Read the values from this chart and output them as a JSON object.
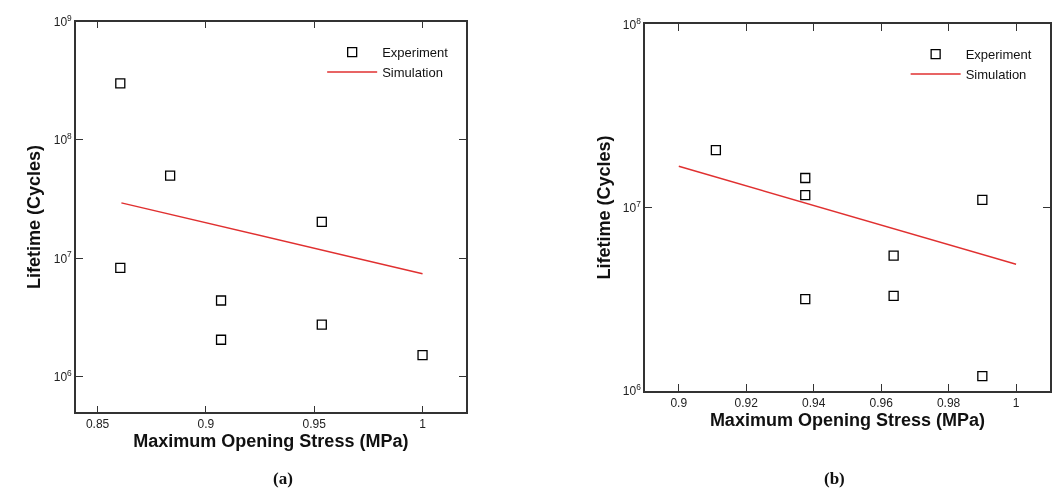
{
  "chart_data": [
    {
      "type": "scatter",
      "xlabel": "Maximum Opening Stress (MPa)",
      "ylabel": "Lifetime (Cycles)",
      "log": "y",
      "legend": "top right",
      "xlim": [
        0.84,
        1.02
      ],
      "xticks": [
        0.85,
        0.9,
        0.95,
        1
      ],
      "ylim": [
        500000,
        1000000000
      ],
      "yticks": [
        {
          "value": 1000000,
          "label": "10$^{6}$"
        },
        {
          "value": 10000000,
          "label": "10$^{7}$"
        },
        {
          "value": 100000000,
          "label": "10$^{8}$"
        },
        {
          "value": 1000000000,
          "label": "10$^{9}$"
        }
      ],
      "series": [
        {
          "name": "Experiment",
          "marker": "square",
          "color": "#000000",
          "x": [
            0.8605,
            0.8605,
            0.8835,
            0.907,
            0.907,
            0.9535,
            0.9535,
            1.0
          ],
          "values": [
            300000000,
            8300000,
            50000000,
            4400000,
            2050000,
            20300000,
            2750000,
            1520000
          ]
        },
        {
          "name": "Simulation",
          "type": "line",
          "marker": "none",
          "line_style": "solid",
          "color": "#e03030",
          "x": [
            0.861,
            1.0
          ],
          "values": [
            29400000,
            7400000
          ]
        }
      ],
      "annotations": [
        "(a)"
      ]
    },
    {
      "type": "scatter",
      "xlabel": "Maximum Opening Stress (MPa)",
      "ylabel": "Lifetime (Cycles)",
      "log": "y",
      "legend": "top right",
      "xlim": [
        0.89,
        1.01
      ],
      "xticks": [
        0.9,
        0.92,
        0.94,
        0.96,
        0.98,
        1
      ],
      "ylim": [
        1000000,
        100000000
      ],
      "yticks": [
        {
          "value": 1000000,
          "label": "10$^{6}$"
        },
        {
          "value": 10000000,
          "label": "10$^{7}$"
        },
        {
          "value": 100000000,
          "label": "10$^{8}$"
        }
      ],
      "series": [
        {
          "name": "Experiment",
          "marker": "square",
          "color": "#000000",
          "x": [
            0.911,
            0.9375,
            0.9375,
            0.9375,
            0.9637,
            0.9637,
            0.99,
            0.99
          ],
          "values": [
            20600000,
            14500000,
            11700000,
            3160000,
            5460000,
            3290000,
            11000000,
            1200000
          ]
        },
        {
          "name": "Simulation",
          "type": "line",
          "marker": "none",
          "line_style": "solid",
          "color": "#e03030",
          "x": [
            0.9,
            1.0
          ],
          "values": [
            16800000,
            4900000
          ]
        }
      ],
      "annotations": [
        "(b)"
      ]
    }
  ]
}
